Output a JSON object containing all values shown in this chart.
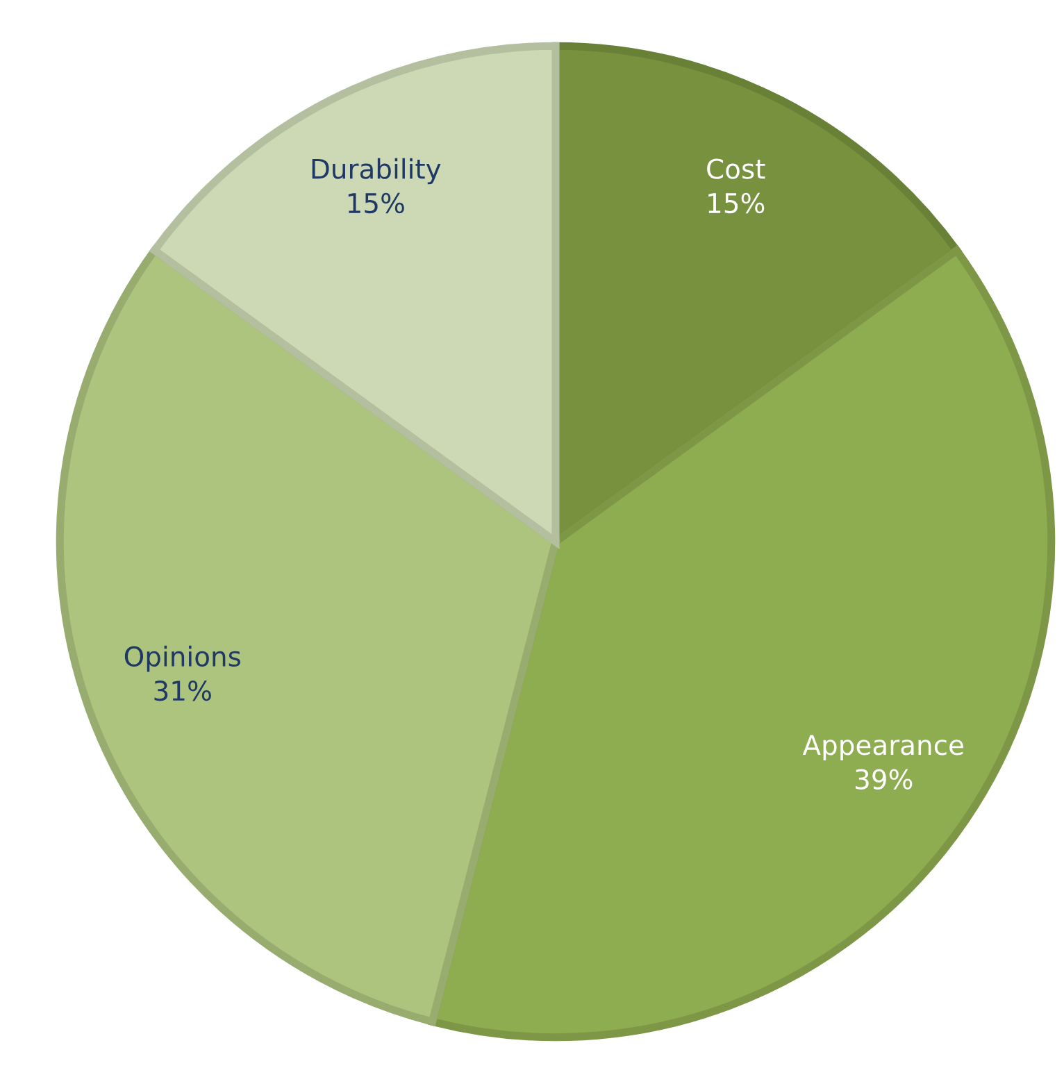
{
  "chart_data": {
    "type": "pie",
    "categories": [
      "Cost",
      "Appearance",
      "Opinions",
      "Durability"
    ],
    "values": [
      15,
      39,
      31,
      15
    ],
    "colors": [
      "#77913f",
      "#8eac50",
      "#adc47e",
      "#cdd9b5"
    ],
    "value_labels": [
      "15%",
      "39%",
      "31%",
      "15%"
    ],
    "legend": false
  }
}
